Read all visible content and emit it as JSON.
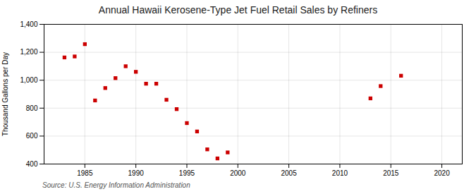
{
  "chart_data": {
    "type": "scatter",
    "title": "Annual Hawaii Kerosene-Type Jet Fuel Retail Sales by Refiners",
    "ylabel": "Thousand Gallons per Day",
    "source": "Source: U.S. Energy Information Administration",
    "x": [
      1983,
      1984,
      1985,
      1986,
      1987,
      1988,
      1989,
      1990,
      1991,
      1992,
      1993,
      1994,
      1995,
      1996,
      1997,
      1998,
      1999,
      2013,
      2014,
      2016
    ],
    "values": [
      1163,
      1170,
      1258,
      855,
      944,
      1015,
      1100,
      1060,
      975,
      975,
      860,
      793,
      693,
      633,
      505,
      440,
      483,
      870,
      958,
      1032
    ],
    "color": "#cc0000",
    "marker": "square",
    "xlim": [
      1981,
      2022
    ],
    "xticks": [
      1985,
      1990,
      1995,
      2000,
      2005,
      2010,
      2015,
      2020
    ],
    "ylim": [
      400,
      1400
    ],
    "yticks": [
      400,
      600,
      800,
      {
        "value": 1000,
        "label": "1,000"
      },
      {
        "value": 1200,
        "label": "1,200"
      },
      {
        "value": 1400,
        "label": "1,400"
      }
    ],
    "grid": true
  }
}
